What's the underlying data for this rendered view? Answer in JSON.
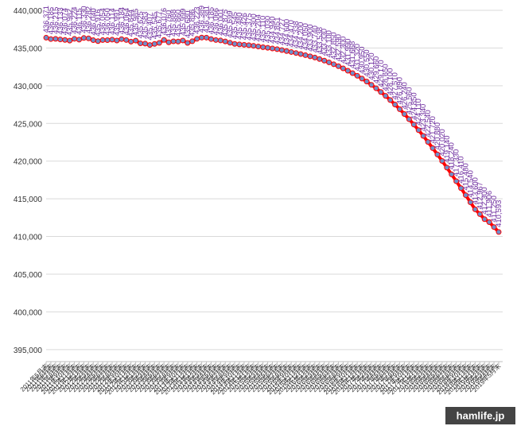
{
  "chart_data": {
    "type": "line",
    "categories": [
      "2011年5月末",
      "2011年6月末",
      "2011年7月末",
      "2011年8月末",
      "2011年9月末",
      "2011年10月末",
      "2011年11月末",
      "2011年12月末",
      "2012年1月末",
      "2012年2月末",
      "2012年3月末",
      "2012年4月末",
      "2012年5月末",
      "2012年6月末",
      "2012年7月末",
      "2012年8月末",
      "2012年9月末",
      "2012年10月末",
      "2012年11月末",
      "2012年12月末",
      "2013年1月末",
      "2013年2月末",
      "2013年3月末",
      "2013年4月末",
      "2013年5月末",
      "2013年6月末",
      "2013年7月末",
      "2013年8月末",
      "2013年9月末",
      "2013年10月末",
      "2013年11月末",
      "2013年12月末",
      "2014年1月末",
      "2014年2月末",
      "2014年3月末",
      "2014年4月末",
      "2014年5月末",
      "2014年6月末",
      "2014年7月末",
      "2014年8月末",
      "2014年9月末",
      "2014年10月末",
      "2014年11月末",
      "2014年12月末",
      "2015年1月末",
      "2015年2月末",
      "2015年3月末",
      "2015年4月末",
      "2015年5月末",
      "2015年6月末",
      "2015年7月末",
      "2015年8月末",
      "2015年9月末",
      "2015年10月末",
      "2015年11月末",
      "2015年12月末",
      "2016年1月末",
      "2016年2月末",
      "2016年3月末",
      "2016年4月末",
      "2016年5月末",
      "2016年6月末",
      "2016年7月末",
      "2016年8月末",
      "2016年9月末",
      "2016年10月末",
      "2016年11月末",
      "2016年12月末",
      "2017年1月末",
      "2017年2月末",
      "2017年3月末",
      "2017年4月末",
      "2017年5月末",
      "2017年6月末",
      "2017年7月末",
      "2017年8月末",
      "2017年9月末",
      "2017年10月末",
      "2017年11月末",
      "2017年12月末",
      "2018年1月末",
      "2018年2月末",
      "2018年3月末",
      "2018年4月末",
      "2018年5月末",
      "2018年6月末",
      "2018年7月末",
      "2018年8月末",
      "2018年9月末",
      "2018年10月末",
      "2018年11月末",
      "2018年12月末",
      "2019年1月末",
      "2019年2月末",
      "2019年3月末",
      "2019年4月末",
      "2019年5月末"
    ],
    "values": [
      436371,
      436185,
      436215,
      436133,
      436074,
      435982,
      436224,
      436115,
      436330,
      436282,
      436040,
      435916,
      436054,
      436050,
      436114,
      435991,
      436184,
      436064,
      435844,
      435985,
      435625,
      435583,
      435407,
      435545,
      435677,
      436076,
      435760,
      435888,
      435860,
      435999,
      435680,
      435896,
      436223,
      436389,
      436381,
      436185,
      436066,
      436001,
      435875,
      435699,
      435545,
      435480,
      435426,
      435375,
      435300,
      435204,
      435110,
      435030,
      434940,
      434851,
      434727,
      434600,
      434470,
      434338,
      434200,
      434050,
      433900,
      433740,
      433538,
      433330,
      433100,
      432850,
      432590,
      432300,
      431990,
      431668,
      431320,
      430950,
      430550,
      430120,
      429660,
      429170,
      428650,
      428100,
      427510,
      426890,
      426240,
      425560,
      424850,
      424110,
      423340,
      422540,
      421720,
      420880,
      420020,
      419140,
      418240,
      417330,
      416410,
      415480,
      414540,
      413600,
      412967,
      412300,
      411906,
      411250,
      410593
    ],
    "value_labels": [
      "436,371",
      "436,185",
      "436,215",
      "436,133",
      "436,074",
      "435,982",
      "436,224",
      "436,115",
      "436,330",
      "436,282",
      "436,040",
      "435,916",
      "436,054",
      "436,050",
      "436,114",
      "435,991",
      "436,184",
      "436,064",
      "435,844",
      "435,985",
      "435,625",
      "435,583",
      "435,407",
      "435,545",
      "435,677",
      "436,076",
      "435,760",
      "435,888",
      "435,860",
      "435,999",
      "435,680",
      "435,896",
      "436,223",
      "436,389",
      "436,381",
      "436,185",
      "436,066",
      "436,001",
      "435,875",
      "435,699",
      "435,545",
      "435,480",
      "435,426",
      "435,375",
      "435,300",
      "435,204",
      "435,110",
      "435,030",
      "434,940",
      "434,851",
      "434,727",
      "434,600",
      "434,470",
      "434,338",
      "434,200",
      "434,050",
      "433,900",
      "433,740",
      "433,538",
      "433,330",
      "433,100",
      "432,850",
      "432,590",
      "432,300",
      "431,990",
      "431,668",
      "431,320",
      "430,950",
      "430,550",
      "430,120",
      "429,660",
      "429,170",
      "428,650",
      "428,100",
      "427,510",
      "426,890",
      "426,240",
      "425,560",
      "424,850",
      "424,110",
      "423,340",
      "422,540",
      "421,720",
      "420,880",
      "420,020",
      "419,140",
      "418,240",
      "417,330",
      "416,410",
      "415,480",
      "414,540",
      "413,600",
      "412,967",
      "412,300",
      "411,906",
      "411,250",
      "410,593"
    ],
    "color": "#ff0000",
    "marker_color": "#6f8fc8",
    "ylim": [
      393400,
      440000
    ],
    "yticks": [
      {
        "value": 395000,
        "label": "395,000"
      },
      {
        "value": 400000,
        "label": "400,000"
      },
      {
        "value": 405000,
        "label": "405,000"
      },
      {
        "value": 410000,
        "label": "410,000"
      },
      {
        "value": 415000,
        "label": "415,000"
      },
      {
        "value": 420000,
        "label": "420,000"
      },
      {
        "value": 425000,
        "label": "425,000"
      },
      {
        "value": 430000,
        "label": "430,000"
      },
      {
        "value": 435000,
        "label": "435,000"
      },
      {
        "value": 440000,
        "label": "440,000"
      }
    ],
    "grid": true,
    "watermark": "hamlife.jp"
  }
}
